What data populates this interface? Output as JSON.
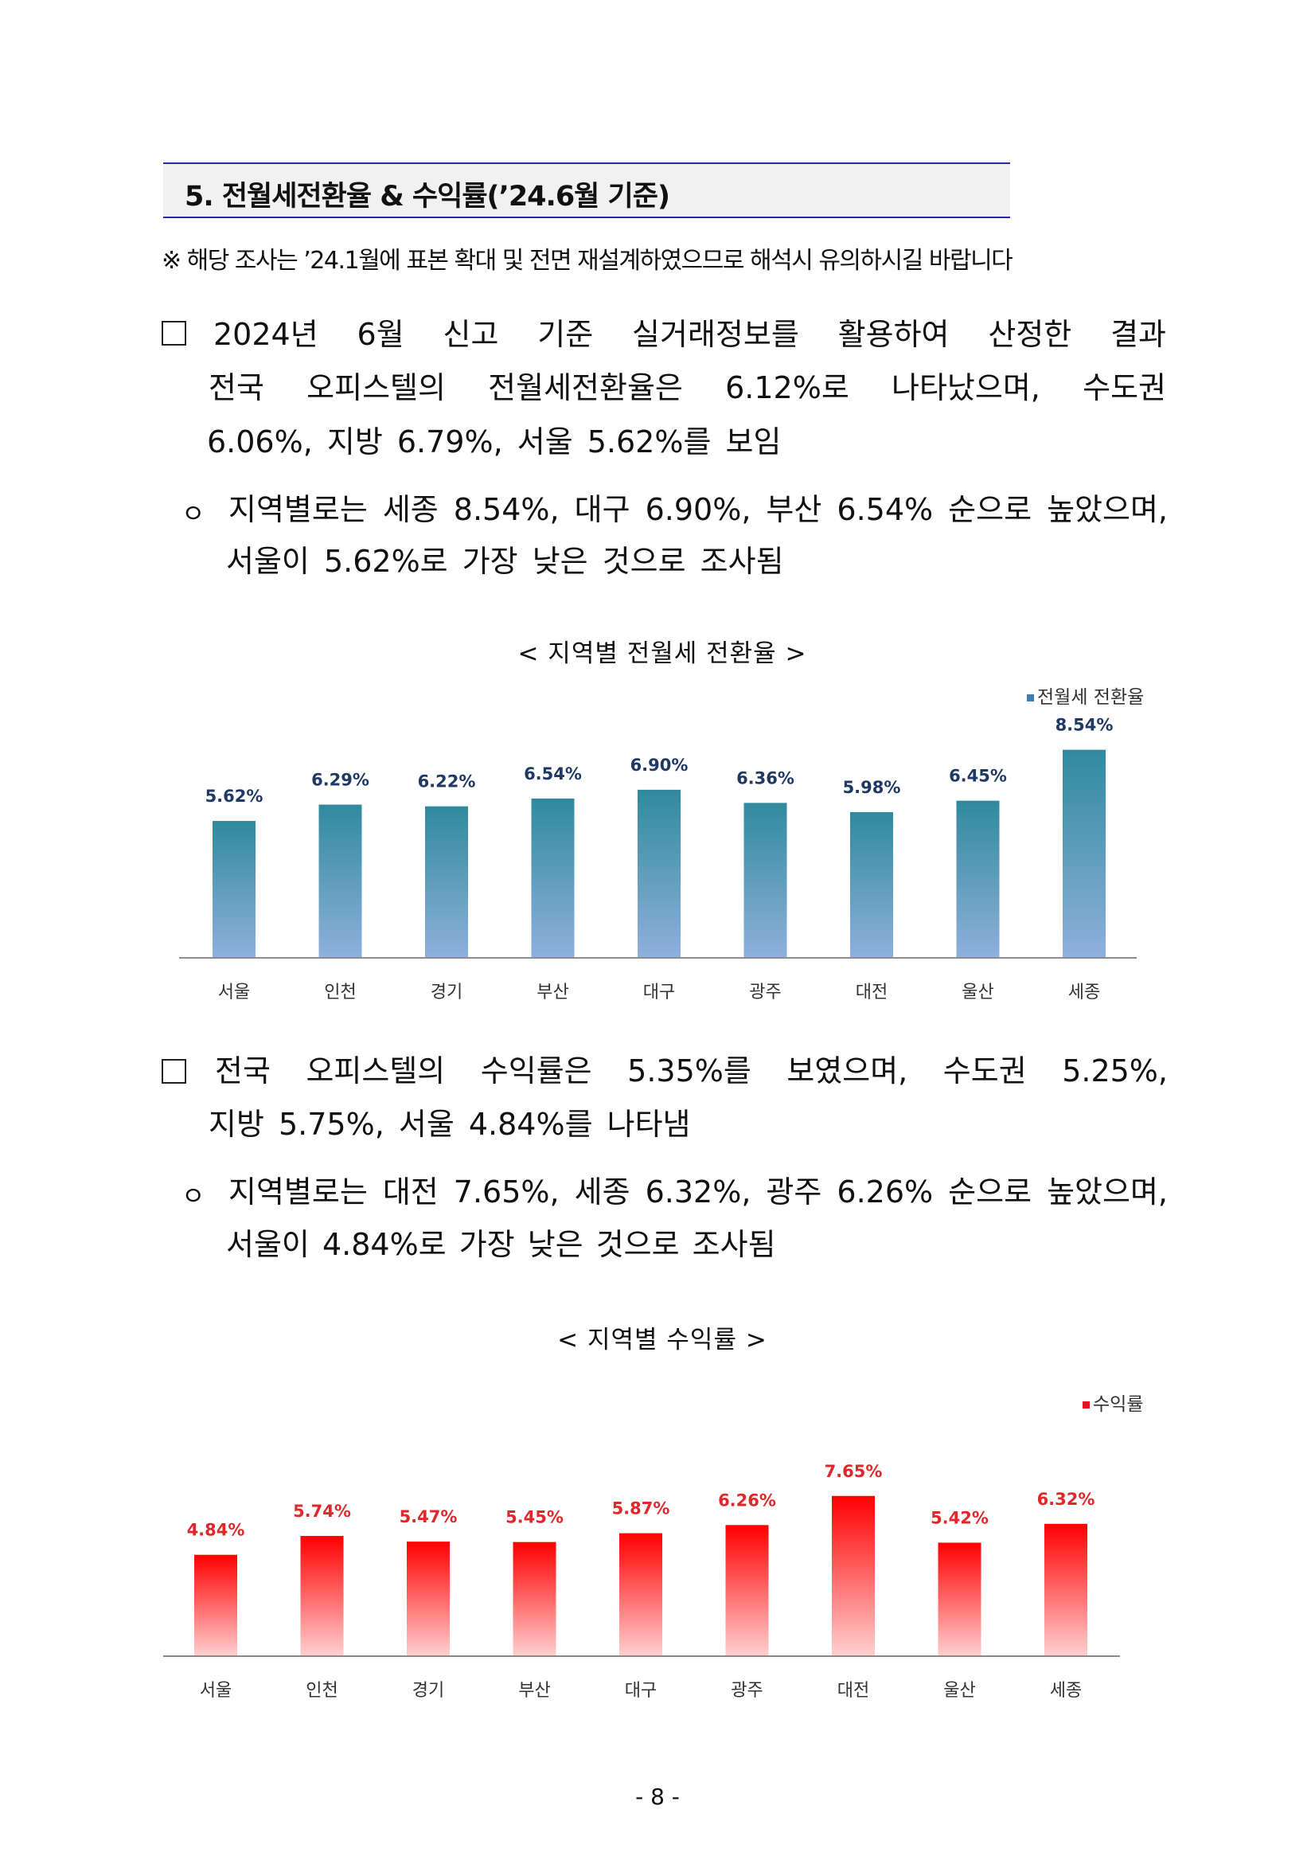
{
  "header": {
    "title": "5. 전월세전환율 & 수익률(’24.6월 기준)"
  },
  "notice": "※ 해당 조사는 ’24.1월에 표본 확대 및 전면 재설계하였으므로 해석시 유의하시길 바랍니다",
  "section1": {
    "lines": [
      "2024년 6월 신고 기준 실거래정보를 활용하여 산정한 결과",
      "전국 오피스텔의 전월세전환율은 6.12%로 나타났으며, 수도권",
      "6.06%, 지방 6.79%, 서울 5.62%를 보임"
    ],
    "bullet": "ㅇ",
    "sub_lines": [
      "지역별로는 세종 8.54%, 대구 6.90%, 부산 6.54% 순으로 높았으며,",
      "서울이 5.62%로 가장 낮은 것으로 조사됨"
    ]
  },
  "section2": {
    "lines": [
      "전국 오피스텔의 수익률은 5.35%를 보였으며, 수도권 5.25%,",
      "지방 5.75%, 서울 4.84%를 나타냄"
    ],
    "bullet": "ㅇ",
    "sub_lines": [
      "지역별로는 대전 7.65%, 세종 6.32%, 광주 6.26% 순으로 높았으며,",
      "서울이 4.84%로 가장 낮은 것으로 조사됨"
    ]
  },
  "chart_data": [
    {
      "type": "bar",
      "title": "< 지역별 전월세 전환율 >",
      "legend": "전월세 전환율",
      "legend_position": "top-right",
      "categories": [
        "서울",
        "인천",
        "경기",
        "부산",
        "대구",
        "광주",
        "대전",
        "울산",
        "세종"
      ],
      "values": [
        5.62,
        6.29,
        6.22,
        6.54,
        6.9,
        6.36,
        5.98,
        6.45,
        8.54
      ],
      "labels": [
        "5.62%",
        "6.29%",
        "6.22%",
        "6.54%",
        "6.90%",
        "6.36%",
        "5.98%",
        "6.45%",
        "8.54%"
      ],
      "color_top": "#2f8a9e",
      "color_bottom": "#8fb0dc",
      "label_color": "#1f3864",
      "ylim": [
        0,
        9.5
      ]
    },
    {
      "type": "bar",
      "title": "< 지역별 수익률 >",
      "legend": "수익률",
      "legend_position": "top-right",
      "categories": [
        "서울",
        "인천",
        "경기",
        "부산",
        "대구",
        "광주",
        "대전",
        "울산",
        "세종"
      ],
      "values": [
        4.84,
        5.74,
        5.47,
        5.45,
        5.87,
        6.26,
        7.65,
        5.42,
        6.32
      ],
      "labels": [
        "4.84%",
        "5.74%",
        "5.47%",
        "5.45%",
        "5.87%",
        "6.26%",
        "7.65%",
        "5.42%",
        "6.32%"
      ],
      "color_top": "#ff0000",
      "color_bottom": "#ffd0d0",
      "label_color": "#e0282a",
      "ylim": [
        0,
        9.5
      ]
    }
  ],
  "page_number": "- 8 -"
}
